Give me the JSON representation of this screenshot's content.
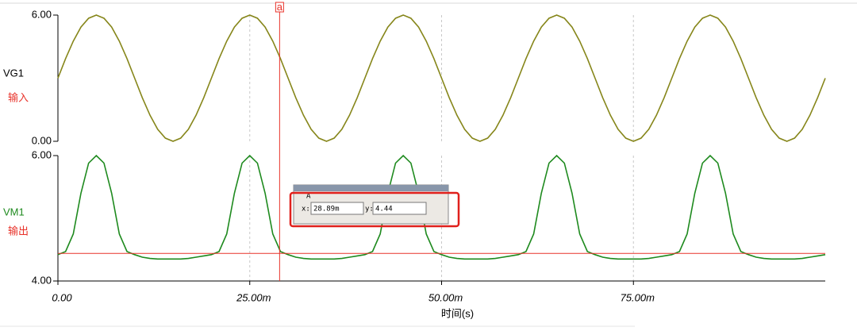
{
  "chart_data": [
    {
      "type": "line",
      "annotation": "输入",
      "annotation_color": "#e8322a",
      "x": [
        0,
        0.001,
        0.002,
        0.003,
        0.004,
        0.005,
        0.006,
        0.007,
        0.008,
        0.009,
        0.01,
        0.011,
        0.012,
        0.013,
        0.014,
        0.015,
        0.016,
        0.017,
        0.018,
        0.019,
        0.02,
        0.021,
        0.022,
        0.023,
        0.024,
        0.025,
        0.026,
        0.027,
        0.028,
        0.029,
        0.03,
        0.031,
        0.032,
        0.033,
        0.034,
        0.035,
        0.036,
        0.037,
        0.038,
        0.039,
        0.04,
        0.041,
        0.042,
        0.043,
        0.044,
        0.045,
        0.046,
        0.047,
        0.048,
        0.049,
        0.05,
        0.051,
        0.052,
        0.053,
        0.054,
        0.055,
        0.056,
        0.057,
        0.058,
        0.059,
        0.06,
        0.061,
        0.062,
        0.063,
        0.064,
        0.065,
        0.066,
        0.067,
        0.068,
        0.069,
        0.07,
        0.071,
        0.072,
        0.073,
        0.074,
        0.075,
        0.076,
        0.077,
        0.078,
        0.079,
        0.08,
        0.081,
        0.082,
        0.083,
        0.084,
        0.085,
        0.086,
        0.087,
        0.088,
        0.089,
        0.09,
        0.091,
        0.092,
        0.093,
        0.094,
        0.095,
        0.096,
        0.097,
        0.098,
        0.099,
        0.1
      ],
      "series": [
        {
          "name": "VG1",
          "color": "#86861a",
          "label_color": "#000000",
          "values": [
            3,
            3.93,
            4.76,
            5.43,
            5.85,
            6,
            5.85,
            5.43,
            4.76,
            3.93,
            3,
            2.07,
            1.24,
            0.57,
            0.15,
            0,
            0.15,
            0.57,
            1.24,
            2.07,
            3,
            3.93,
            4.76,
            5.43,
            5.85,
            6,
            5.85,
            5.43,
            4.76,
            3.93,
            3,
            2.07,
            1.24,
            0.57,
            0.15,
            0,
            0.15,
            0.57,
            1.24,
            2.07,
            3,
            3.93,
            4.76,
            5.43,
            5.85,
            6,
            5.85,
            5.43,
            4.76,
            3.93,
            3,
            2.07,
            1.24,
            0.57,
            0.15,
            0,
            0.15,
            0.57,
            1.24,
            2.07,
            3,
            3.93,
            4.76,
            5.43,
            5.85,
            6,
            5.85,
            5.43,
            4.76,
            3.93,
            3,
            2.07,
            1.24,
            0.57,
            0.15,
            0,
            0.15,
            0.57,
            1.24,
            2.07,
            3,
            3.93,
            4.76,
            5.43,
            5.85,
            6,
            5.85,
            5.43,
            4.76,
            3.93,
            3,
            2.07,
            1.24,
            0.57,
            0.15,
            0,
            0.15,
            0.57,
            1.24,
            2.07,
            3
          ]
        }
      ],
      "xlim": [
        0,
        0.1
      ],
      "xticks": [
        0,
        0.025,
        0.05,
        0.075
      ],
      "ylim": [
        0,
        6
      ],
      "yticks": [
        {
          "value": 0,
          "label": "0.00"
        },
        {
          "value": 6,
          "label": "6.00"
        }
      ],
      "grid": true
    },
    {
      "type": "line",
      "annotation": "输出",
      "annotation_color": "#e8322a",
      "xlabel": "时间(s)",
      "x": [
        0,
        0.001,
        0.002,
        0.003,
        0.004,
        0.005,
        0.006,
        0.007,
        0.008,
        0.009,
        0.01,
        0.011,
        0.012,
        0.013,
        0.014,
        0.015,
        0.016,
        0.017,
        0.018,
        0.019,
        0.02,
        0.021,
        0.022,
        0.023,
        0.024,
        0.025,
        0.026,
        0.027,
        0.028,
        0.029,
        0.03,
        0.031,
        0.032,
        0.033,
        0.034,
        0.035,
        0.036,
        0.037,
        0.038,
        0.039,
        0.04,
        0.041,
        0.042,
        0.043,
        0.044,
        0.045,
        0.046,
        0.047,
        0.048,
        0.049,
        0.05,
        0.051,
        0.052,
        0.053,
        0.054,
        0.055,
        0.056,
        0.057,
        0.058,
        0.059,
        0.06,
        0.061,
        0.062,
        0.063,
        0.064,
        0.065,
        0.066,
        0.067,
        0.068,
        0.069,
        0.07,
        0.071,
        0.072,
        0.073,
        0.074,
        0.075,
        0.076,
        0.077,
        0.078,
        0.079,
        0.08,
        0.081,
        0.082,
        0.083,
        0.084,
        0.085,
        0.086,
        0.087,
        0.088,
        0.089,
        0.09,
        0.091,
        0.092,
        0.093,
        0.094,
        0.095,
        0.096,
        0.097,
        0.098,
        0.099,
        0.1
      ],
      "series": [
        {
          "name": "VM1",
          "color": "#1e8a1e",
          "label_color": "#1e8a1e",
          "values": [
            4.42,
            4.47,
            4.75,
            5.4,
            5.88,
            6,
            5.88,
            5.4,
            4.75,
            4.47,
            4.42,
            4.38,
            4.36,
            4.35,
            4.35,
            4.35,
            4.35,
            4.36,
            4.38,
            4.4,
            4.42,
            4.47,
            4.75,
            5.4,
            5.88,
            6,
            5.88,
            5.4,
            4.75,
            4.47,
            4.42,
            4.38,
            4.36,
            4.35,
            4.35,
            4.35,
            4.35,
            4.36,
            4.38,
            4.4,
            4.42,
            4.47,
            4.75,
            5.4,
            5.88,
            6,
            5.88,
            5.4,
            4.75,
            4.47,
            4.42,
            4.38,
            4.36,
            4.35,
            4.35,
            4.35,
            4.35,
            4.36,
            4.38,
            4.4,
            4.42,
            4.47,
            4.75,
            5.4,
            5.88,
            6,
            5.88,
            5.4,
            4.75,
            4.47,
            4.42,
            4.38,
            4.36,
            4.35,
            4.35,
            4.35,
            4.35,
            4.36,
            4.38,
            4.4,
            4.42,
            4.47,
            4.75,
            5.4,
            5.88,
            6,
            5.88,
            5.4,
            4.75,
            4.47,
            4.42,
            4.38,
            4.36,
            4.35,
            4.35,
            4.35,
            4.35,
            4.36,
            4.38,
            4.4,
            4.42
          ]
        }
      ],
      "xlim": [
        0,
        0.1
      ],
      "xticks": [
        {
          "value": 0,
          "label": "0.00"
        },
        {
          "value": 0.025,
          "label": "25.00m"
        },
        {
          "value": 0.05,
          "label": "50.00m"
        },
        {
          "value": 0.075,
          "label": "75.00m"
        }
      ],
      "ylim": [
        4,
        6
      ],
      "yticks": [
        {
          "value": 4,
          "label": "4.00"
        },
        {
          "value": 6,
          "label": "6.00"
        }
      ],
      "grid": true
    }
  ],
  "cursor": {
    "name": "a",
    "box_title": "A",
    "x_caption": "x:",
    "y_caption": "y:",
    "color": "#e8322a",
    "x": {
      "value": 0.02889,
      "label": "28.89m"
    },
    "y": 4.44
  }
}
